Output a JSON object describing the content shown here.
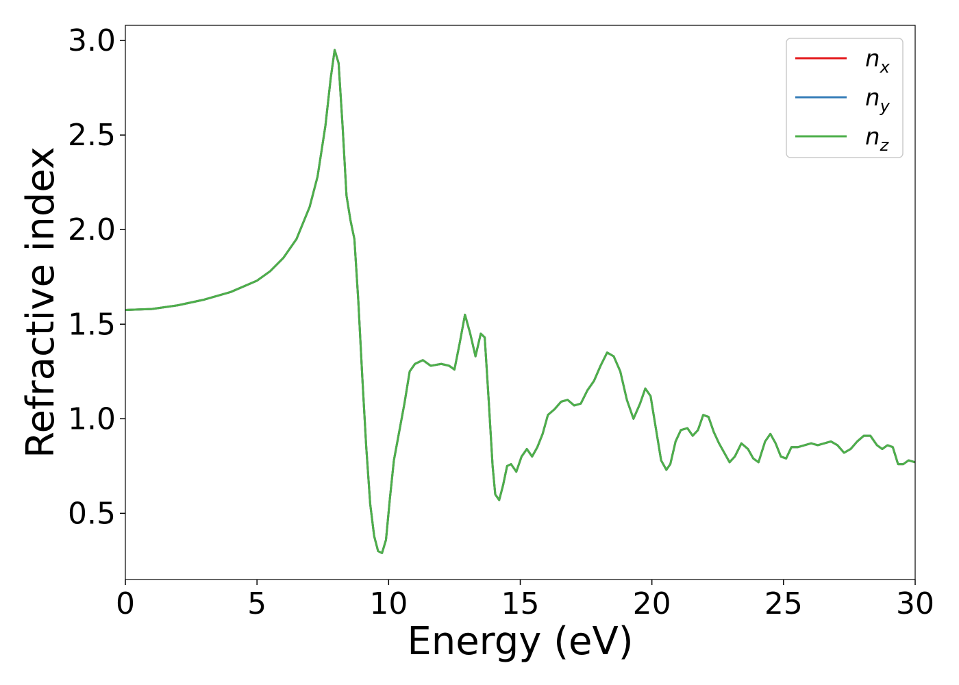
{
  "chart_data": {
    "type": "line",
    "title": "",
    "xlabel": "Energy (eV)",
    "ylabel": "Refractive index",
    "xlim": [
      0,
      30
    ],
    "ylim": [
      0.15,
      3.08
    ],
    "xticks": [
      0,
      5,
      10,
      15,
      20,
      25,
      30
    ],
    "yticks": [
      0.5,
      1.0,
      1.5,
      2.0,
      2.5,
      3.0
    ],
    "grid": false,
    "legend_position": "top-right",
    "x": [
      0,
      1,
      2,
      3,
      4,
      5,
      5.5,
      6,
      6.5,
      7,
      7.3,
      7.6,
      7.8,
      7.95,
      8.1,
      8.25,
      8.4,
      8.55,
      8.7,
      8.85,
      9.0,
      9.15,
      9.3,
      9.45,
      9.6,
      9.75,
      9.9,
      10.05,
      10.2,
      10.4,
      10.6,
      10.8,
      11.0,
      11.3,
      11.6,
      12.0,
      12.3,
      12.5,
      12.7,
      12.9,
      13.1,
      13.3,
      13.5,
      13.65,
      13.8,
      13.95,
      14.05,
      14.2,
      14.35,
      14.5,
      14.65,
      14.85,
      15.05,
      15.25,
      15.45,
      15.65,
      15.85,
      16.05,
      16.3,
      16.55,
      16.8,
      17.05,
      17.3,
      17.55,
      17.8,
      18.05,
      18.3,
      18.55,
      18.8,
      19.05,
      19.3,
      19.55,
      19.75,
      19.95,
      20.15,
      20.35,
      20.55,
      20.7,
      20.9,
      21.1,
      21.35,
      21.55,
      21.75,
      21.95,
      22.15,
      22.35,
      22.55,
      22.75,
      22.95,
      23.15,
      23.4,
      23.65,
      23.85,
      24.05,
      24.3,
      24.5,
      24.7,
      24.9,
      25.1,
      25.3,
      25.55,
      25.8,
      26.05,
      26.3,
      26.55,
      26.8,
      27.05,
      27.3,
      27.55,
      27.8,
      28.05,
      28.3,
      28.55,
      28.75,
      28.95,
      29.15,
      29.35,
      29.55,
      29.75,
      30.0
    ],
    "series": [
      {
        "name": "n_x",
        "color": "#e41a1c"
      },
      {
        "name": "n_y",
        "color": "#377eb8"
      },
      {
        "name": "n_z",
        "color": "#4daf4a",
        "values": [
          1.575,
          1.58,
          1.6,
          1.63,
          1.67,
          1.73,
          1.78,
          1.85,
          1.95,
          2.12,
          2.28,
          2.55,
          2.8,
          2.95,
          2.88,
          2.55,
          2.18,
          2.05,
          1.95,
          1.62,
          1.22,
          0.85,
          0.55,
          0.38,
          0.3,
          0.29,
          0.36,
          0.58,
          0.78,
          0.93,
          1.08,
          1.25,
          1.29,
          1.31,
          1.28,
          1.29,
          1.28,
          1.26,
          1.4,
          1.55,
          1.45,
          1.33,
          1.45,
          1.43,
          1.1,
          0.75,
          0.6,
          0.57,
          0.65,
          0.75,
          0.76,
          0.72,
          0.8,
          0.84,
          0.8,
          0.85,
          0.92,
          1.02,
          1.05,
          1.09,
          1.1,
          1.07,
          1.08,
          1.15,
          1.2,
          1.28,
          1.35,
          1.33,
          1.25,
          1.1,
          1.0,
          1.08,
          1.16,
          1.12,
          0.95,
          0.78,
          0.73,
          0.76,
          0.88,
          0.94,
          0.95,
          0.91,
          0.94,
          1.02,
          1.01,
          0.93,
          0.87,
          0.82,
          0.77,
          0.8,
          0.87,
          0.84,
          0.79,
          0.77,
          0.88,
          0.92,
          0.87,
          0.8,
          0.79,
          0.85,
          0.85,
          0.86,
          0.87,
          0.86,
          0.87,
          0.88,
          0.86,
          0.82,
          0.84,
          0.88,
          0.91,
          0.91,
          0.86,
          0.84,
          0.86,
          0.85,
          0.76,
          0.76,
          0.78,
          0.77
        ]
      }
    ]
  }
}
